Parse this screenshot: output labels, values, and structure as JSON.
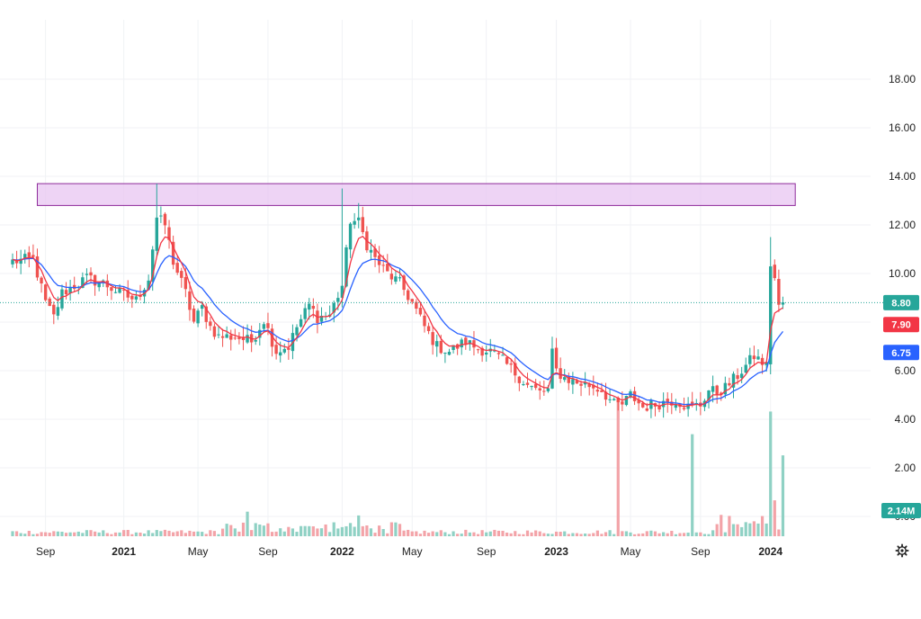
{
  "colors": {
    "up": "#26a69a",
    "down": "#ef5350",
    "ema_fast": "#f23645",
    "ema_slow": "#2962ff",
    "vol_up": "#8fd1c4",
    "vol_down": "#f3a3a8",
    "zone_fill": "#e8c6f2",
    "zone_stroke": "#8e2a9a",
    "grid": "#f0f2f5",
    "price_line": "#26a69a"
  },
  "chart_data": {
    "type": "candlestick",
    "y_axis": {
      "ticks": [
        "18.00",
        "16.00",
        "14.00",
        "12.00",
        "10.00",
        "8.00",
        "6.00",
        "4.00",
        "2.00",
        "0.00"
      ],
      "range": [
        -0.8,
        19.6
      ]
    },
    "x_axis": {
      "labels": [
        "Sep",
        "2021",
        "May",
        "Sep",
        "2022",
        "May",
        "Sep",
        "2023",
        "May",
        "Sep",
        "2024"
      ],
      "bold_labels": [
        "2021",
        "2022",
        "2023",
        "2024"
      ]
    },
    "resistance_zone": {
      "low": 12.8,
      "high": 13.7,
      "from_week": 6,
      "to_week": 190
    },
    "price_tags": [
      {
        "value": "8.80",
        "level": 8.8,
        "color": "#26a69a"
      },
      {
        "value": "7.90",
        "level": 7.9,
        "color": "#f23645"
      },
      {
        "value": "6.75",
        "level": 6.75,
        "color": "#2962ff"
      }
    ],
    "volume_tag": {
      "value": "2.14M",
      "color": "#26a69a"
    },
    "weekly_close_anchors": [
      [
        0,
        10.5
      ],
      [
        5,
        10.6
      ],
      [
        8,
        8.8
      ],
      [
        10,
        8.2
      ],
      [
        12,
        9.2
      ],
      [
        14,
        9.4
      ],
      [
        18,
        9.8
      ],
      [
        22,
        9.6
      ],
      [
        26,
        9.2
      ],
      [
        30,
        8.9
      ],
      [
        33,
        9.8
      ],
      [
        35,
        12.3
      ],
      [
        37,
        12.0
      ],
      [
        39,
        10.5
      ],
      [
        42,
        9.2
      ],
      [
        44,
        8.0
      ],
      [
        46,
        8.6
      ],
      [
        48,
        7.8
      ],
      [
        50,
        7.4
      ],
      [
        54,
        7.4
      ],
      [
        58,
        7.2
      ],
      [
        61,
        8.1
      ],
      [
        64,
        6.8
      ],
      [
        67,
        7.0
      ],
      [
        69,
        7.8
      ],
      [
        72,
        8.7
      ],
      [
        74,
        8.2
      ],
      [
        77,
        8.3
      ],
      [
        80,
        9.5
      ],
      [
        82,
        12.2
      ],
      [
        84,
        12.1
      ],
      [
        86,
        11.2
      ],
      [
        88,
        10.6
      ],
      [
        91,
        10.0
      ],
      [
        94,
        9.6
      ],
      [
        97,
        8.8
      ],
      [
        100,
        7.8
      ],
      [
        103,
        7.0
      ],
      [
        106,
        6.8
      ],
      [
        110,
        7.2
      ],
      [
        113,
        6.9
      ],
      [
        116,
        6.8
      ],
      [
        119,
        6.4
      ],
      [
        122,
        5.9
      ],
      [
        125,
        5.4
      ],
      [
        128,
        5.1
      ],
      [
        130,
        5.2
      ],
      [
        131,
        6.7
      ],
      [
        132,
        6.0
      ],
      [
        134,
        5.7
      ],
      [
        137,
        5.5
      ],
      [
        140,
        5.4
      ],
      [
        143,
        5.2
      ],
      [
        146,
        4.6
      ],
      [
        148,
        4.6
      ],
      [
        150,
        5.0
      ],
      [
        153,
        4.5
      ],
      [
        156,
        4.6
      ],
      [
        158,
        4.7
      ],
      [
        161,
        4.8
      ],
      [
        164,
        4.5
      ],
      [
        167,
        4.6
      ],
      [
        169,
        5.2
      ],
      [
        171,
        5.1
      ],
      [
        173,
        5.3
      ],
      [
        176,
        5.8
      ],
      [
        178,
        6.2
      ],
      [
        180,
        6.6
      ],
      [
        183,
        6.2
      ],
      [
        184,
        10.4
      ],
      [
        185,
        9.8
      ],
      [
        186,
        8.6
      ],
      [
        187,
        8.8
      ]
    ],
    "spikes": [
      {
        "week": 35,
        "high": 13.7
      },
      {
        "week": 80,
        "high": 13.5
      },
      {
        "week": 84,
        "high": 12.9
      },
      {
        "week": 131,
        "high": 7.4
      },
      {
        "week": 184,
        "high": 11.5
      }
    ],
    "volume_spikes": [
      {
        "week": 57,
        "value": 0.65
      },
      {
        "week": 84,
        "value": 0.55
      },
      {
        "week": 147,
        "value": 3.6
      },
      {
        "week": 165,
        "value": 2.7
      },
      {
        "week": 184,
        "value": 3.3
      },
      {
        "week": 185,
        "value": 0.95
      },
      {
        "week": 187,
        "value": 2.14
      }
    ]
  }
}
